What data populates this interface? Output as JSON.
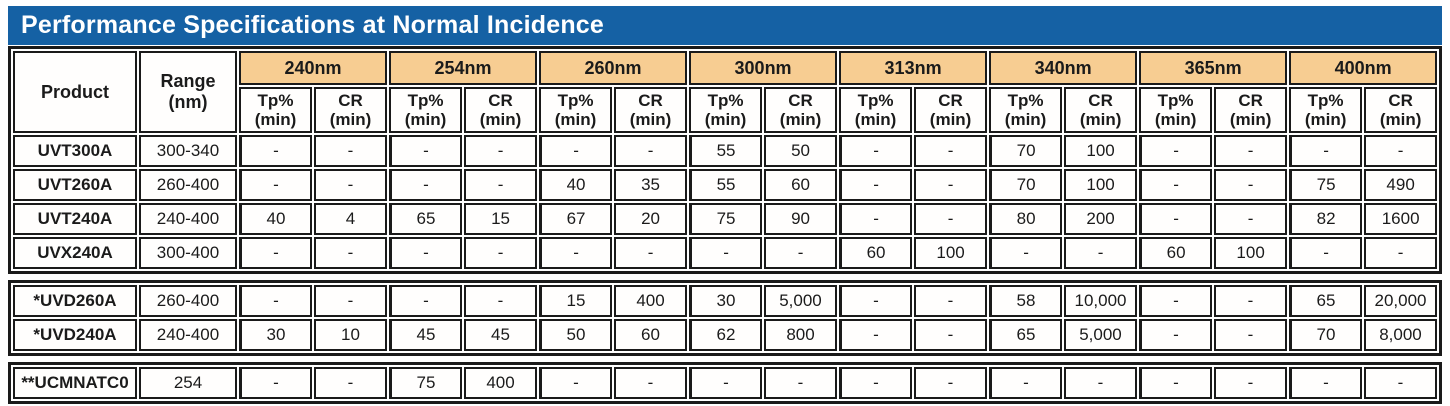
{
  "title": "Performance Specifications at Normal Incidence",
  "colors": {
    "title_bar_blue": "#1561A4",
    "wavelength_header_peach": "#F7CD92",
    "table_border": "#1A1A1A"
  },
  "table": {
    "product_header": "Product",
    "range_header_line1": "Range",
    "range_header_line2": "(nm)",
    "tp_label": "Tp%",
    "cr_label": "CR",
    "min_label": "(min)",
    "wavelengths": [
      "240nm",
      "254nm",
      "260nm",
      "300nm",
      "313nm",
      "340nm",
      "365nm",
      "400nm"
    ],
    "sections": [
      {
        "rows": [
          {
            "product": "UVT300A",
            "range": "300-340",
            "values": [
              "-",
              "-",
              "-",
              "-",
              "-",
              "-",
              "55",
              "50",
              "-",
              "-",
              "70",
              "100",
              "-",
              "-",
              "-",
              "-"
            ]
          },
          {
            "product": "UVT260A",
            "range": "260-400",
            "values": [
              "-",
              "-",
              "-",
              "-",
              "40",
              "35",
              "55",
              "60",
              "-",
              "-",
              "70",
              "100",
              "-",
              "-",
              "75",
              "490"
            ]
          },
          {
            "product": "UVT240A",
            "range": "240-400",
            "values": [
              "40",
              "4",
              "65",
              "15",
              "67",
              "20",
              "75",
              "90",
              "-",
              "-",
              "80",
              "200",
              "-",
              "-",
              "82",
              "1600"
            ]
          },
          {
            "product": "UVX240A",
            "range": "300-400",
            "values": [
              "-",
              "-",
              "-",
              "-",
              "-",
              "-",
              "-",
              "-",
              "60",
              "100",
              "-",
              "-",
              "60",
              "100",
              "-",
              "-"
            ]
          }
        ]
      },
      {
        "rows": [
          {
            "product": "*UVD260A",
            "range": "260-400",
            "values": [
              "-",
              "-",
              "-",
              "-",
              "15",
              "400",
              "30",
              "5,000",
              "-",
              "-",
              "58",
              "10,000",
              "-",
              "-",
              "65",
              "20,000"
            ]
          },
          {
            "product": "*UVD240A",
            "range": "240-400",
            "values": [
              "30",
              "10",
              "45",
              "45",
              "50",
              "60",
              "62",
              "800",
              "-",
              "-",
              "65",
              "5,000",
              "-",
              "-",
              "70",
              "8,000"
            ]
          }
        ]
      },
      {
        "rows": [
          {
            "product": "**UCMNATC0",
            "range": "254",
            "values": [
              "-",
              "-",
              "75",
              "400",
              "-",
              "-",
              "-",
              "-",
              "-",
              "-",
              "-",
              "-",
              "-",
              "-",
              "-",
              "-"
            ]
          }
        ]
      }
    ]
  }
}
